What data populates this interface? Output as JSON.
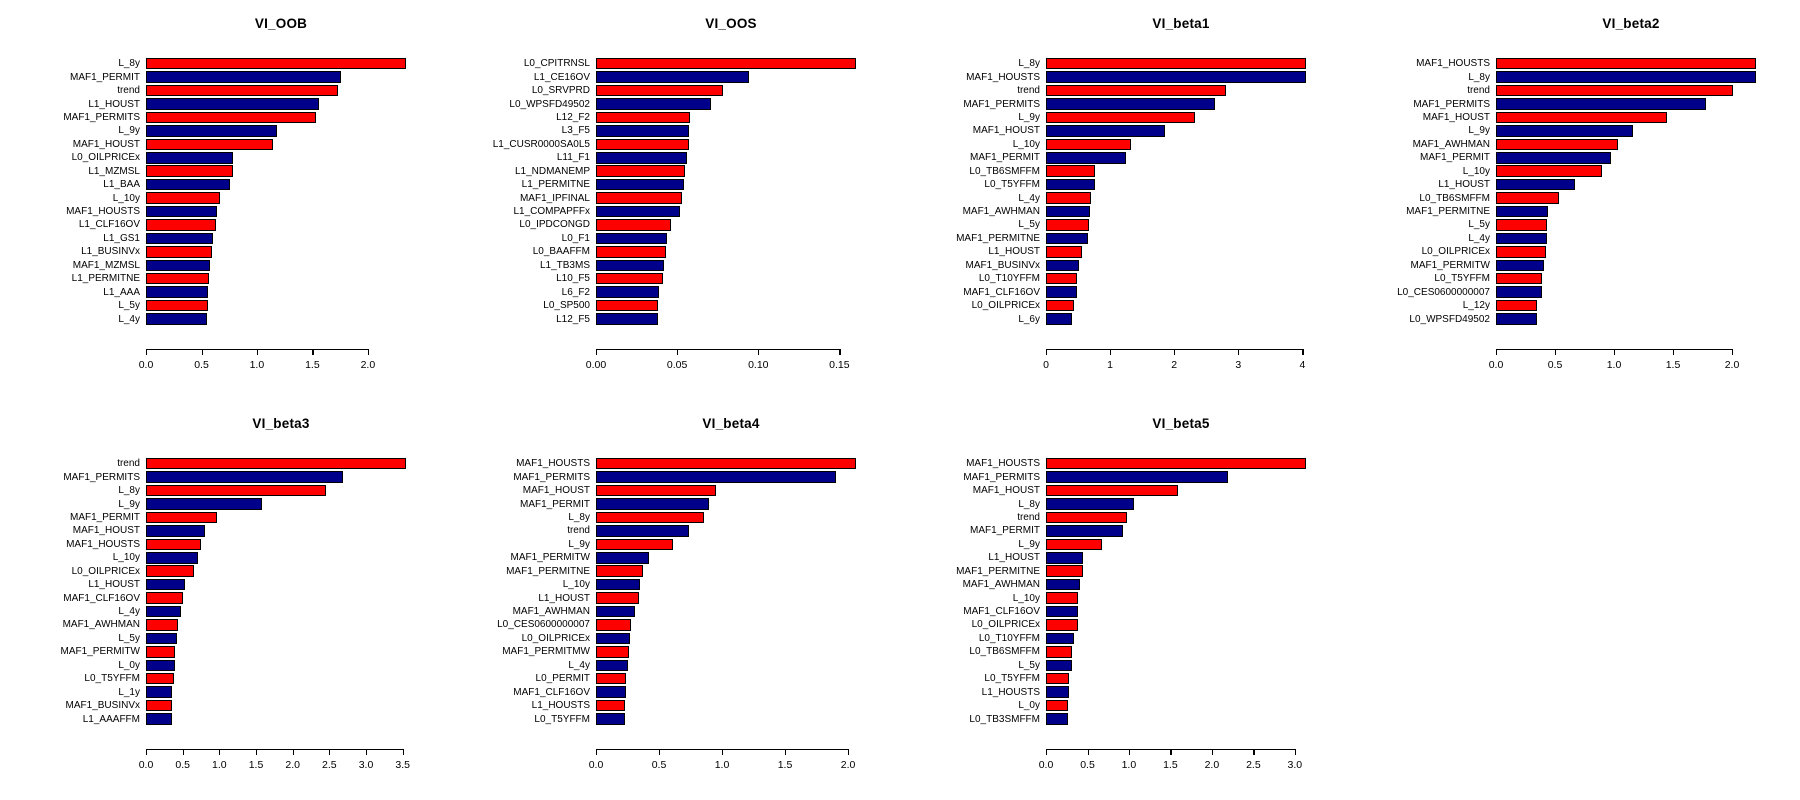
{
  "colors": {
    "bar_odd": "#FF0000",
    "bar_even": "#00008B",
    "bar_border": "#000000",
    "axis": "#000000",
    "background": "#FFFFFF"
  },
  "chart_data": [
    {
      "type": "bar",
      "orientation": "horizontal",
      "title": "VI_OOB",
      "xlabel": "",
      "ylabel": "",
      "grid": false,
      "legend": false,
      "xlim": [
        0,
        2.43
      ],
      "ticks": [
        0.0,
        0.5,
        1.0,
        1.5,
        2.0
      ],
      "tick_labels": [
        "0.0",
        "0.5",
        "1.0",
        "1.5",
        "2.0"
      ],
      "categories": [
        "L_8y",
        "MAF1_PERMIT",
        "trend",
        "L1_HOUST",
        "MAF1_PERMITS",
        "L_9y",
        "MAF1_HOUST",
        "L0_OILPRICEx",
        "L1_MZMSL",
        "L1_BAA",
        "L_10y",
        "MAF1_HOUSTS",
        "L1_CLF16OV",
        "L1_GS1",
        "L1_BUSINVx",
        "MAF1_MZMSL",
        "L1_PERMITNE",
        "L1_AAA",
        "L_5y",
        "L_4y"
      ],
      "values": [
        2.34,
        1.76,
        1.73,
        1.56,
        1.53,
        1.18,
        1.14,
        0.78,
        0.78,
        0.76,
        0.67,
        0.64,
        0.63,
        0.6,
        0.59,
        0.58,
        0.57,
        0.56,
        0.56,
        0.55
      ],
      "bar_colors": [
        "#FF0000",
        "#00008B"
      ]
    },
    {
      "type": "bar",
      "orientation": "horizontal",
      "title": "VI_OOS",
      "xlabel": "",
      "ylabel": "",
      "grid": false,
      "legend": false,
      "xlim": [
        0,
        0.166
      ],
      "ticks": [
        0.0,
        0.05,
        0.1,
        0.15
      ],
      "tick_labels": [
        "0.00",
        "0.05",
        "0.10",
        "0.15"
      ],
      "categories": [
        "L0_CPITRNSL",
        "L1_CE16OV",
        "L0_SRVPRD",
        "L0_WPSFD49502",
        "L12_F2",
        "L3_F5",
        "L1_CUSR0000SA0L5",
        "L11_F1",
        "L1_NDMANEMP",
        "L1_PERMITNE",
        "MAF1_IPFINAL",
        "L1_COMPAPFFx",
        "L0_IPDCONGD",
        "L0_F1",
        "L0_BAAFFM",
        "L1_TB3MS",
        "L10_F5",
        "L6_F2",
        "L0_SP500",
        "L12_F5"
      ],
      "values": [
        0.16,
        0.094,
        0.078,
        0.071,
        0.058,
        0.057,
        0.057,
        0.056,
        0.055,
        0.054,
        0.053,
        0.052,
        0.046,
        0.044,
        0.043,
        0.042,
        0.041,
        0.039,
        0.038,
        0.038
      ],
      "bar_colors": [
        "#FF0000",
        "#00008B"
      ]
    },
    {
      "type": "bar",
      "orientation": "horizontal",
      "title": "VI_beta1",
      "xlabel": "",
      "ylabel": "",
      "grid": false,
      "legend": false,
      "xlim": [
        0,
        4.21
      ],
      "ticks": [
        0,
        1,
        2,
        3,
        4
      ],
      "tick_labels": [
        "0",
        "1",
        "2",
        "3",
        "4"
      ],
      "categories": [
        "L_8y",
        "MAF1_HOUSTS",
        "trend",
        "MAF1_PERMITS",
        "L_9y",
        "MAF1_HOUST",
        "L_10y",
        "MAF1_PERMIT",
        "L0_TB6SMFFM",
        "L0_T5YFFM",
        "L_4y",
        "MAF1_AWHMAN",
        "L_5y",
        "MAF1_PERMITNE",
        "L1_HOUST",
        "MAF1_BUSINVx",
        "L0_T10YFFM",
        "MAF1_CLF16OV",
        "L0_OILPRICEx",
        "L_6y"
      ],
      "values": [
        4.05,
        4.05,
        2.81,
        2.63,
        2.32,
        1.86,
        1.32,
        1.25,
        0.77,
        0.76,
        0.7,
        0.68,
        0.67,
        0.65,
        0.56,
        0.51,
        0.49,
        0.48,
        0.44,
        0.41
      ],
      "bar_colors": [
        "#FF0000",
        "#00008B"
      ]
    },
    {
      "type": "bar",
      "orientation": "horizontal",
      "title": "VI_beta2",
      "xlabel": "",
      "ylabel": "",
      "grid": false,
      "legend": false,
      "xlim": [
        0,
        2.29
      ],
      "ticks": [
        0.0,
        0.5,
        1.0,
        1.5,
        2.0
      ],
      "tick_labels": [
        "0.0",
        "0.5",
        "1.0",
        "1.5",
        "2.0"
      ],
      "categories": [
        "MAF1_HOUSTS",
        "L_8y",
        "trend",
        "MAF1_PERMITS",
        "MAF1_HOUST",
        "L_9y",
        "MAF1_AWHMAN",
        "MAF1_PERMIT",
        "L_10y",
        "L1_HOUST",
        "L0_TB6SMFFM",
        "MAF1_PERMITNE",
        "L_5y",
        "L_4y",
        "L0_OILPRICEx",
        "MAF1_PERMITW",
        "L0_T5YFFM",
        "L0_CES0600000007",
        "L_12y",
        "L0_WPSFD49502"
      ],
      "values": [
        2.2,
        2.2,
        2.01,
        1.78,
        1.45,
        1.16,
        1.03,
        0.97,
        0.9,
        0.67,
        0.53,
        0.44,
        0.43,
        0.43,
        0.42,
        0.41,
        0.39,
        0.39,
        0.35,
        0.35
      ],
      "bar_colors": [
        "#FF0000",
        "#00008B"
      ]
    },
    {
      "type": "bar",
      "orientation": "horizontal",
      "title": "VI_beta3",
      "xlabel": "",
      "ylabel": "",
      "grid": false,
      "legend": false,
      "xlim": [
        0,
        3.68
      ],
      "ticks": [
        0.0,
        0.5,
        1.0,
        1.5,
        2.0,
        2.5,
        3.0,
        3.5
      ],
      "tick_labels": [
        "0.0",
        "0.5",
        "1.0",
        "1.5",
        "2.0",
        "2.5",
        "3.0",
        "3.5"
      ],
      "categories": [
        "trend",
        "MAF1_PERMITS",
        "L_8y",
        "L_9y",
        "MAF1_PERMIT",
        "MAF1_HOUST",
        "MAF1_HOUSTS",
        "L_10y",
        "L0_OILPRICEx",
        "L1_HOUST",
        "MAF1_CLF16OV",
        "L_4y",
        "MAF1_AWHMAN",
        "L_5y",
        "MAF1_PERMITW",
        "L_0y",
        "L0_T5YFFM",
        "L_1y",
        "MAF1_BUSINVx",
        "L1_AAAFFM"
      ],
      "values": [
        3.54,
        2.68,
        2.46,
        1.58,
        0.97,
        0.81,
        0.75,
        0.71,
        0.65,
        0.53,
        0.51,
        0.47,
        0.44,
        0.42,
        0.4,
        0.39,
        0.38,
        0.36,
        0.35,
        0.35
      ],
      "bar_colors": [
        "#FF0000",
        "#00008B"
      ]
    },
    {
      "type": "bar",
      "orientation": "horizontal",
      "title": "VI_beta4",
      "xlabel": "",
      "ylabel": "",
      "grid": false,
      "legend": false,
      "xlim": [
        0,
        2.14
      ],
      "ticks": [
        0.0,
        0.5,
        1.0,
        1.5,
        2.0
      ],
      "tick_labels": [
        "0.0",
        "0.5",
        "1.0",
        "1.5",
        "2.0"
      ],
      "categories": [
        "MAF1_HOUSTS",
        "MAF1_PERMITS",
        "MAF1_HOUST",
        "MAF1_PERMIT",
        "L_8y",
        "trend",
        "L_9y",
        "MAF1_PERMITW",
        "MAF1_PERMITNE",
        "L_10y",
        "L1_HOUST",
        "MAF1_AWHMAN",
        "L0_CES0600000007",
        "L0_OILPRICEx",
        "MAF1_PERMITMW",
        "L_4y",
        "L0_PERMIT",
        "MAF1_CLF16OV",
        "L1_HOUSTS",
        "L0_T5YFFM"
      ],
      "values": [
        2.06,
        1.9,
        0.95,
        0.9,
        0.86,
        0.74,
        0.61,
        0.42,
        0.37,
        0.35,
        0.34,
        0.31,
        0.28,
        0.27,
        0.26,
        0.25,
        0.24,
        0.24,
        0.23,
        0.23
      ],
      "bar_colors": [
        "#FF0000",
        "#00008B"
      ]
    },
    {
      "type": "bar",
      "orientation": "horizontal",
      "title": "VI_beta5",
      "xlabel": "",
      "ylabel": "",
      "grid": false,
      "legend": false,
      "xlim": [
        0,
        3.26
      ],
      "ticks": [
        0.0,
        0.5,
        1.0,
        1.5,
        2.0,
        2.5,
        3.0
      ],
      "tick_labels": [
        "0.0",
        "0.5",
        "1.0",
        "1.5",
        "2.0",
        "2.5",
        "3.0"
      ],
      "categories": [
        "MAF1_HOUSTS",
        "MAF1_PERMITS",
        "MAF1_HOUST",
        "L_8y",
        "trend",
        "MAF1_PERMIT",
        "L_9y",
        "L1_HOUST",
        "MAF1_PERMITNE",
        "MAF1_AWHMAN",
        "L_10y",
        "MAF1_CLF16OV",
        "L0_OILPRICEx",
        "L0_T10YFFM",
        "L0_TB6SMFFM",
        "L_5y",
        "L0_T5YFFM",
        "L1_HOUSTS",
        "L_0y",
        "L0_TB3SMFFM"
      ],
      "values": [
        3.13,
        2.19,
        1.59,
        1.06,
        0.98,
        0.93,
        0.67,
        0.45,
        0.45,
        0.41,
        0.39,
        0.38,
        0.38,
        0.34,
        0.31,
        0.31,
        0.28,
        0.28,
        0.27,
        0.27
      ],
      "bar_colors": [
        "#FF0000",
        "#00008B"
      ]
    }
  ]
}
